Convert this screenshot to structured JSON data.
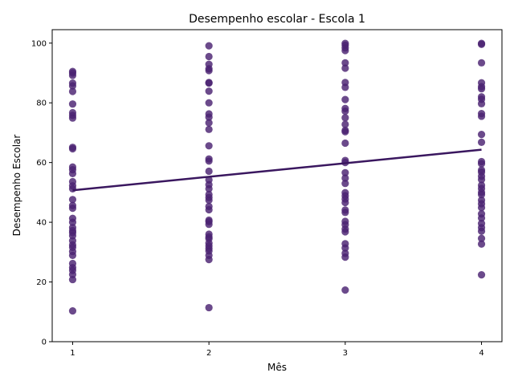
{
  "chart_data": {
    "type": "scatter",
    "title": "Desempenho escolar - Escola 1",
    "xlabel": "Mês",
    "ylabel": "Desempenho Escolar",
    "xlim": [
      0.85,
      4.15
    ],
    "ylim": [
      0,
      104.5
    ],
    "xticks": [
      1,
      2,
      3,
      4
    ],
    "yticks": [
      0,
      20,
      40,
      60,
      80,
      100
    ],
    "grid": false,
    "legend": "none",
    "point_color": "#4b2272",
    "line_color": "#3a175f",
    "series": [
      {
        "points": [
          [
            1,
            10.3
          ],
          [
            1,
            20.8
          ],
          [
            1,
            22.5
          ],
          [
            1,
            23.9
          ],
          [
            1,
            24.8
          ],
          [
            1,
            26.2
          ],
          [
            1,
            28.9
          ],
          [
            1,
            30.2
          ],
          [
            1,
            31.6
          ],
          [
            1,
            32.4
          ],
          [
            1,
            33.8
          ],
          [
            1,
            35.5
          ],
          [
            1,
            36.5
          ],
          [
            1,
            37.2
          ],
          [
            1,
            38.2
          ],
          [
            1,
            40.0
          ],
          [
            1,
            41.3
          ],
          [
            1,
            44.7
          ],
          [
            1,
            45.6
          ],
          [
            1,
            47.6
          ],
          [
            1,
            51.2
          ],
          [
            1,
            52.2
          ],
          [
            1,
            53.6
          ],
          [
            1,
            56.3
          ],
          [
            1,
            57.6
          ],
          [
            1,
            58.5
          ],
          [
            1,
            64.6
          ],
          [
            1,
            65.1
          ],
          [
            1,
            74.9
          ],
          [
            1,
            75.8
          ],
          [
            1,
            76.7
          ],
          [
            1,
            79.6
          ],
          [
            1,
            83.8
          ],
          [
            1,
            85.7
          ],
          [
            1,
            86.6
          ],
          [
            1,
            89.2
          ],
          [
            1,
            90.0
          ],
          [
            1,
            90.5
          ],
          [
            2,
            11.4
          ],
          [
            2,
            27.5
          ],
          [
            2,
            28.9
          ],
          [
            2,
            30.4
          ],
          [
            2,
            31.2
          ],
          [
            2,
            32.1
          ],
          [
            2,
            33.0
          ],
          [
            2,
            34.5
          ],
          [
            2,
            35.1
          ],
          [
            2,
            36.0
          ],
          [
            2,
            39.3
          ],
          [
            2,
            40.2
          ],
          [
            2,
            40.7
          ],
          [
            2,
            44.2
          ],
          [
            2,
            45.3
          ],
          [
            2,
            47.4
          ],
          [
            2,
            48.3
          ],
          [
            2,
            49.3
          ],
          [
            2,
            51.2
          ],
          [
            2,
            52.6
          ],
          [
            2,
            54.2
          ],
          [
            2,
            57.1
          ],
          [
            2,
            60.5
          ],
          [
            2,
            61.2
          ],
          [
            2,
            65.6
          ],
          [
            2,
            71.1
          ],
          [
            2,
            73.3
          ],
          [
            2,
            75.2
          ],
          [
            2,
            76.3
          ],
          [
            2,
            80.0
          ],
          [
            2,
            83.9
          ],
          [
            2,
            86.6
          ],
          [
            2,
            86.8
          ],
          [
            2,
            90.8
          ],
          [
            2,
            91.4
          ],
          [
            2,
            92.9
          ],
          [
            2,
            95.5
          ],
          [
            2,
            99.1
          ],
          [
            3,
            17.3
          ],
          [
            3,
            28.3
          ],
          [
            3,
            29.6
          ],
          [
            3,
            31.4
          ],
          [
            3,
            32.8
          ],
          [
            3,
            36.8
          ],
          [
            3,
            37.7
          ],
          [
            3,
            39.2
          ],
          [
            3,
            40.3
          ],
          [
            3,
            43.3
          ],
          [
            3,
            44.1
          ],
          [
            3,
            46.6
          ],
          [
            3,
            47.8
          ],
          [
            3,
            48.9
          ],
          [
            3,
            49.9
          ],
          [
            3,
            53.0
          ],
          [
            3,
            54.8
          ],
          [
            3,
            56.6
          ],
          [
            3,
            60.0
          ],
          [
            3,
            60.7
          ],
          [
            3,
            66.5
          ],
          [
            3,
            70.3
          ],
          [
            3,
            70.8
          ],
          [
            3,
            72.8
          ],
          [
            3,
            75.0
          ],
          [
            3,
            77.2
          ],
          [
            3,
            78.1
          ],
          [
            3,
            81.1
          ],
          [
            3,
            85.2
          ],
          [
            3,
            86.8
          ],
          [
            3,
            91.6
          ],
          [
            3,
            93.4
          ],
          [
            3,
            97.5
          ],
          [
            3,
            98.4
          ],
          [
            3,
            99.3
          ],
          [
            3,
            99.9
          ],
          [
            4,
            22.4
          ],
          [
            4,
            32.7
          ],
          [
            4,
            34.6
          ],
          [
            4,
            37.0
          ],
          [
            4,
            38.2
          ],
          [
            4,
            39.6
          ],
          [
            4,
            41.4
          ],
          [
            4,
            42.8
          ],
          [
            4,
            44.9
          ],
          [
            4,
            46.2
          ],
          [
            4,
            47.4
          ],
          [
            4,
            49.3
          ],
          [
            4,
            50.0
          ],
          [
            4,
            51.3
          ],
          [
            4,
            52.4
          ],
          [
            4,
            54.3
          ],
          [
            4,
            55.4
          ],
          [
            4,
            56.8
          ],
          [
            4,
            57.5
          ],
          [
            4,
            59.6
          ],
          [
            4,
            60.3
          ],
          [
            4,
            66.8
          ],
          [
            4,
            69.4
          ],
          [
            4,
            75.5
          ],
          [
            4,
            76.4
          ],
          [
            4,
            79.7
          ],
          [
            4,
            81.2
          ],
          [
            4,
            82.0
          ],
          [
            4,
            84.7
          ],
          [
            4,
            85.4
          ],
          [
            4,
            86.7
          ],
          [
            4,
            93.4
          ],
          [
            4,
            99.6
          ],
          [
            4,
            99.9
          ]
        ]
      }
    ],
    "trend_line": {
      "x": [
        1,
        4
      ],
      "y": [
        50.7,
        64.3
      ]
    }
  }
}
